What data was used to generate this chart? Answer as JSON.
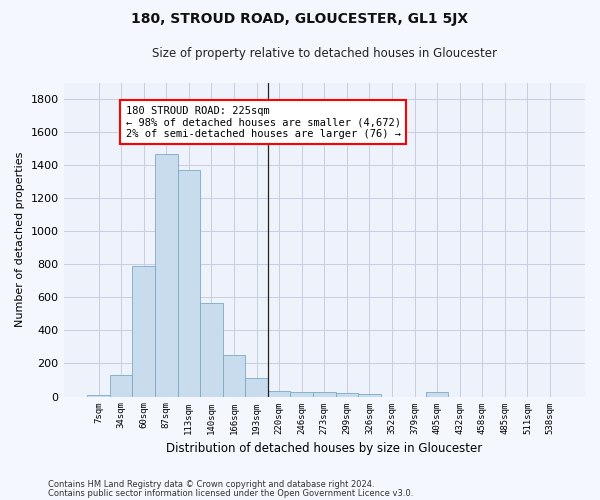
{
  "title": "180, STROUD ROAD, GLOUCESTER, GL1 5JX",
  "subtitle": "Size of property relative to detached houses in Gloucester",
  "xlabel": "Distribution of detached houses by size in Gloucester",
  "ylabel": "Number of detached properties",
  "bar_color": "#c8dced",
  "bar_edge_color": "#7aaac8",
  "background_color": "#eef2fa",
  "fig_background_color": "#f5f7ff",
  "grid_color": "#c8cce0",
  "categories": [
    "7sqm",
    "34sqm",
    "60sqm",
    "87sqm",
    "113sqm",
    "140sqm",
    "166sqm",
    "193sqm",
    "220sqm",
    "246sqm",
    "273sqm",
    "299sqm",
    "326sqm",
    "352sqm",
    "379sqm",
    "405sqm",
    "432sqm",
    "458sqm",
    "485sqm",
    "511sqm",
    "538sqm"
  ],
  "values": [
    10,
    130,
    790,
    1470,
    1370,
    565,
    250,
    110,
    35,
    30,
    30,
    20,
    15,
    0,
    0,
    25,
    0,
    0,
    0,
    0,
    0
  ],
  "ylim": [
    0,
    1900
  ],
  "yticks": [
    0,
    200,
    400,
    600,
    800,
    1000,
    1200,
    1400,
    1600,
    1800
  ],
  "property_line_bin": 8,
  "annotation_text": "180 STROUD ROAD: 225sqm\n← 98% of detached houses are smaller (4,672)\n2% of semi-detached houses are larger (76) →",
  "footer_line1": "Contains HM Land Registry data © Crown copyright and database right 2024.",
  "footer_line2": "Contains public sector information licensed under the Open Government Licence v3.0."
}
